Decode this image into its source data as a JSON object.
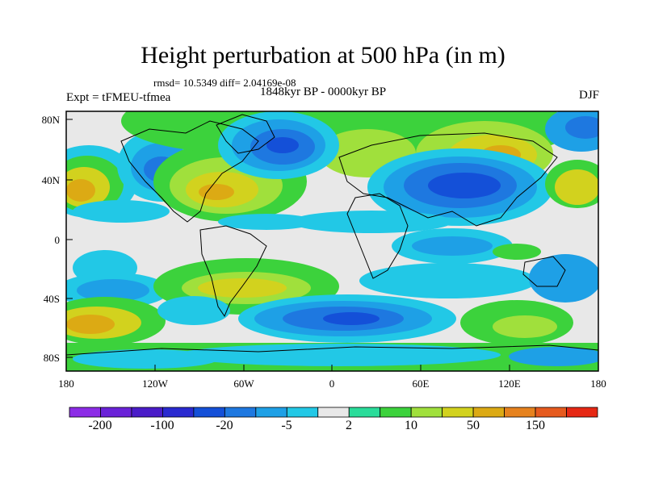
{
  "title": "Height perturbation at 500 hPa (in m)",
  "stats": "rmsd= 10.5349 diff= 2.04169e-08",
  "period": "1848kyr BP - 0000kyr BP",
  "experiment": "Expt = tFMEU-tfmea",
  "season": "DJF",
  "lat_labels": [
    "80N",
    "40N",
    "0",
    "40S",
    "80S"
  ],
  "lon_labels": [
    "180",
    "120W",
    "60W",
    "0",
    "60E",
    "120E",
    "180"
  ],
  "colorbar": {
    "colors": [
      "#8c2ce6",
      "#6a22d8",
      "#4a1cc8",
      "#2a2ad0",
      "#1450d8",
      "#1e78e0",
      "#1ea0e6",
      "#22c8e6",
      "#e8e8e8",
      "#2adc9a",
      "#3cd23c",
      "#a0e03c",
      "#d2d21e",
      "#dcaa14",
      "#e6821e",
      "#e65a1e",
      "#e62814"
    ],
    "labels": [
      "-200",
      "-100",
      "-20",
      "-5",
      "2",
      "10",
      "50",
      "150"
    ]
  },
  "colors": {
    "background": "#e8e8e8",
    "coast": "#000000"
  }
}
